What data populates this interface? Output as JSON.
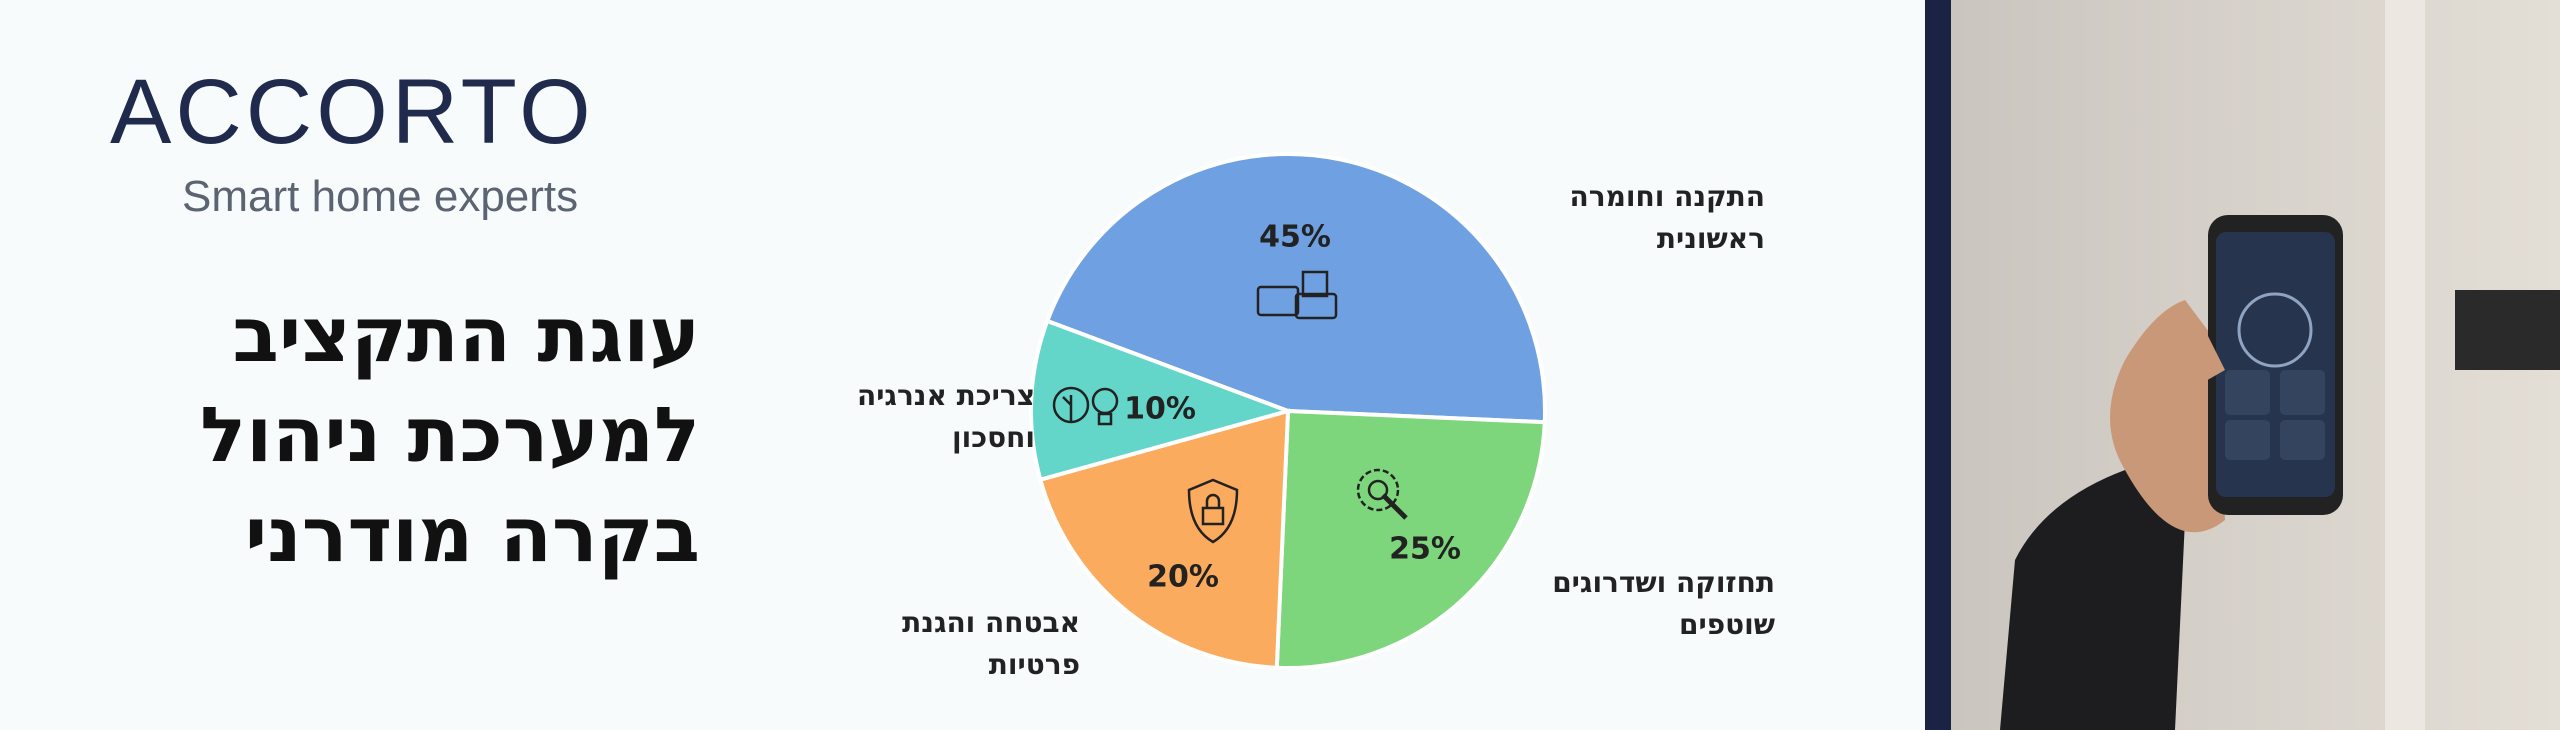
{
  "brand": {
    "name": "ACCORTO",
    "tagline": "Smart home experts"
  },
  "chart_data": {
    "type": "pie",
    "title": "עוגת התקציב\nלמערכת ניהול\nבקרה מודרני",
    "categories": [
      "התקנה וחומרה\nראשונית",
      "תחזוקה ושדרוגים\nשוטפים",
      "אבטחה והגנת\nפרטיות",
      "צריכת אנרגיה\nוחסכון"
    ],
    "values": [
      45,
      25,
      20,
      10
    ],
    "value_labels": [
      "45%",
      "25%",
      "20%",
      "10%"
    ],
    "colors": [
      "#6fa1e2",
      "#7ed67c",
      "#fbab5e",
      "#63d6c9"
    ]
  }
}
